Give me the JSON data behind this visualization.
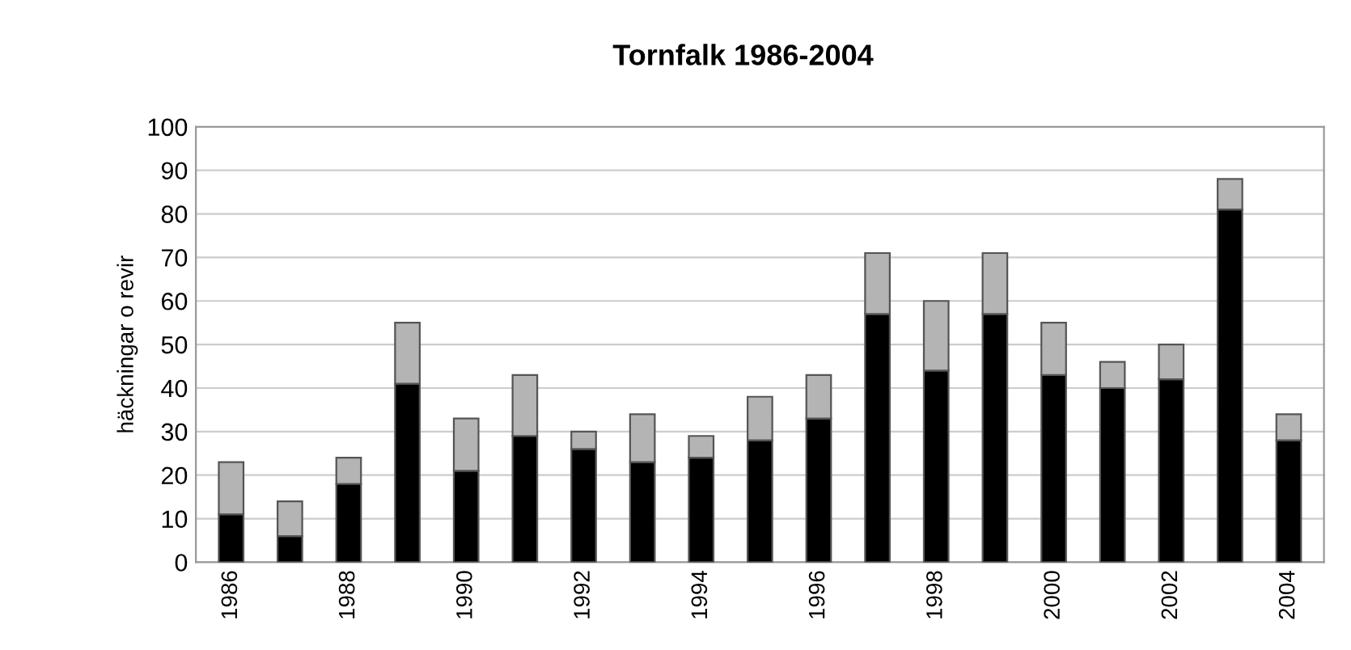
{
  "chart_data": {
    "type": "bar",
    "title": "Tornfalk 1986-2004",
    "ylabel": "häckningar o revir",
    "categories": [
      "1986",
      null,
      "1988",
      null,
      "1990",
      null,
      "1992",
      null,
      "1994",
      null,
      "1996",
      null,
      "1998",
      null,
      "2000",
      null,
      "2002",
      null,
      "2004"
    ],
    "stacked": true,
    "series": [
      {
        "color": "#000000",
        "values": [
          11,
          6,
          18,
          41,
          21,
          29,
          26,
          23,
          24,
          28,
          33,
          57,
          44,
          57,
          43,
          40,
          42,
          81,
          28
        ]
      },
      {
        "color": "#b4b4b4",
        "values": [
          12,
          8,
          6,
          14,
          12,
          14,
          4,
          11,
          5,
          10,
          10,
          14,
          16,
          14,
          12,
          6,
          8,
          7,
          6
        ]
      }
    ],
    "ylim": [
      0,
      100
    ],
    "yticks": [
      0,
      10,
      20,
      30,
      40,
      50,
      60,
      70,
      80,
      90,
      100
    ],
    "grid": "y"
  }
}
